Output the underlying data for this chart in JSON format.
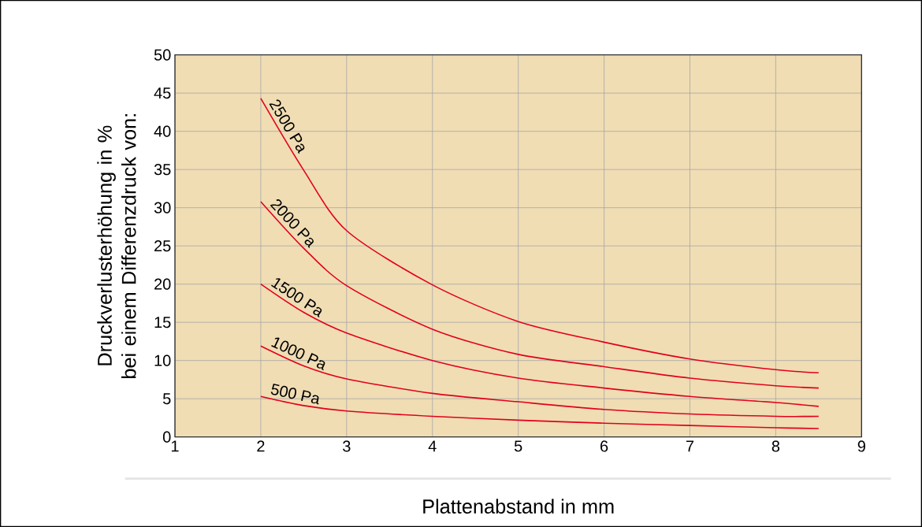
{
  "chart_data": {
    "type": "line",
    "xlabel": "Plattenabstand in mm",
    "ylabel": "Druckverlusterhöhung in % bei einem Differenzdruck von:",
    "x": [
      2,
      2.5,
      3,
      4,
      5,
      6,
      7,
      8,
      8.5
    ],
    "series": [
      {
        "name": "2500 Pa",
        "color": "#e3001b",
        "values": [
          44.3,
          34.9,
          27.0,
          19.9,
          15.1,
          12.4,
          10.2,
          8.8,
          8.4
        ]
      },
      {
        "name": "2000 Pa",
        "color": "#e3001b",
        "values": [
          30.8,
          24.7,
          19.8,
          14.1,
          10.8,
          9.2,
          7.7,
          6.7,
          6.4
        ]
      },
      {
        "name": "1500 Pa",
        "color": "#e3001b",
        "values": [
          20.0,
          16.3,
          13.6,
          10.0,
          7.7,
          6.4,
          5.3,
          4.5,
          4.0
        ]
      },
      {
        "name": "1000 Pa",
        "color": "#e3001b",
        "values": [
          11.9,
          9.3,
          7.6,
          5.7,
          4.6,
          3.6,
          3.0,
          2.7,
          2.7
        ]
      },
      {
        "name": "500 Pa",
        "color": "#e3001b",
        "values": [
          5.3,
          4.1,
          3.4,
          2.7,
          2.2,
          1.8,
          1.5,
          1.2,
          1.1
        ]
      }
    ],
    "xlim": [
      1,
      9
    ],
    "ylim": [
      0,
      50
    ],
    "xticks": [
      1,
      2,
      3,
      4,
      5,
      6,
      7,
      8,
      9
    ],
    "yticks": [
      0,
      5,
      10,
      15,
      20,
      25,
      30,
      35,
      40,
      45,
      50
    ],
    "grid": true,
    "legend": false,
    "marker": "none",
    "line_style": "solid"
  }
}
